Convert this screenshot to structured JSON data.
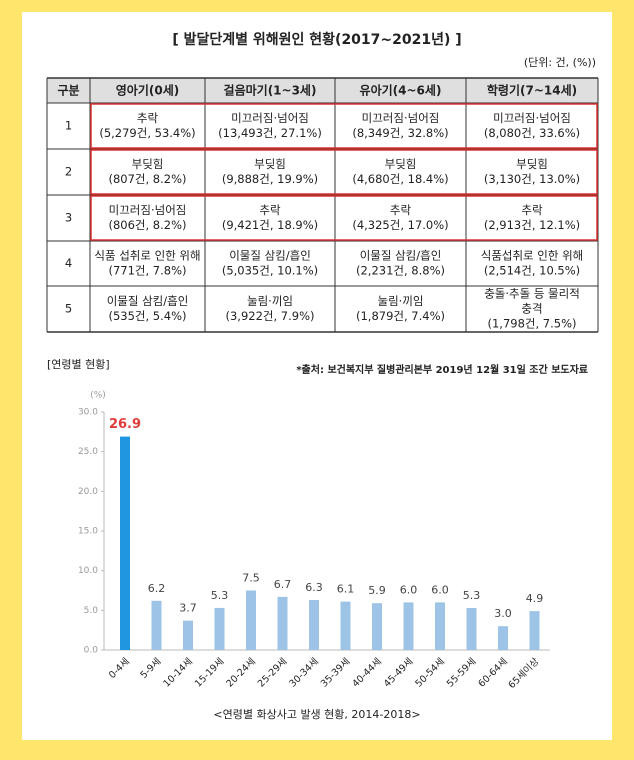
{
  "header": {
    "title": "[ 발달단계별 위해원인 현황(2017~2021년) ]",
    "unit": "(단위: 건, (%))"
  },
  "table": {
    "columns": [
      "구분",
      "영아기(0세)",
      "걸음마기(1~3세)",
      "유아기(4~6세)",
      "학령기(7~14세)"
    ],
    "rows": [
      [
        [
          "1"
        ],
        [
          "추락",
          "(5,279건, 53.4%)"
        ],
        [
          "미끄러짐·넘어짐",
          "(13,493건, 27.1%)"
        ],
        [
          "미끄러짐·넘어짐",
          "(8,349건, 32.8%)"
        ],
        [
          "미끄러짐·넘어짐",
          "(8,080건, 33.6%)"
        ]
      ],
      [
        [
          "2"
        ],
        [
          "부딪힘",
          "(807건, 8.2%)"
        ],
        [
          "부딪힘",
          "(9,888건, 19.9%)"
        ],
        [
          "부딪힘",
          "(4,680건, 18.4%)"
        ],
        [
          "부딪힘",
          "(3,130건, 13.0%)"
        ]
      ],
      [
        [
          "3"
        ],
        [
          "미끄러짐·넘어짐",
          "(806건, 8.2%)"
        ],
        [
          "추락",
          "(9,421건, 18.9%)"
        ],
        [
          "추락",
          "(4,325건, 17.0%)"
        ],
        [
          "추락",
          "(2,913건, 12.1%)"
        ]
      ],
      [
        [
          "4"
        ],
        [
          "식품 섭취로 인한 위해",
          "(771건, 7.8%)"
        ],
        [
          "이물질 삼킴/흡인",
          "(5,035건, 10.1%)"
        ],
        [
          "이물질 삼킴/흡인",
          "(2,231건, 8.8%)"
        ],
        [
          "식품섭취로 인한 위해",
          "(2,514건, 10.5%)"
        ]
      ],
      [
        [
          "5"
        ],
        [
          "이물질 삼킴/흡인",
          "(535건, 5.4%)"
        ],
        [
          "눌림·끼임",
          "(3,922건, 7.9%)"
        ],
        [
          "눌림·끼임",
          "(1,879건, 7.4%)"
        ],
        [
          "충돌·추돌 등 물리적",
          "충격",
          "(1,798건, 7.5%)"
        ]
      ]
    ]
  },
  "chart_data": {
    "type": "bar",
    "title": "[연령별 현황]",
    "source": "*출처: 보건복지부 질병관리본부 2019년 12월 31일 조간 보도자료",
    "y_unit": "(%)",
    "caption": "<연령별 화상사고 발생 현황, 2014-2018>",
    "categories": [
      "0-4세",
      "5-9세",
      "10-14세",
      "15-19세",
      "20-24세",
      "25-29세",
      "30-34세",
      "35-39세",
      "40-44세",
      "45-49세",
      "50-54세",
      "55-59세",
      "60-64세",
      "65세이상"
    ],
    "values": [
      26.9,
      6.2,
      3.7,
      5.3,
      7.5,
      6.7,
      6.3,
      6.1,
      5.9,
      6.0,
      6.0,
      5.3,
      3.0,
      4.9
    ],
    "value_labels": [
      "26.9",
      "6.2",
      "3.7",
      "5.3",
      "7.5",
      "6.7",
      "6.3",
      "6.1",
      "5.9",
      "6.0",
      "6.0",
      "5.3",
      "3.0",
      "4.9"
    ],
    "colors": [
      "#2196e0",
      "#9dc3e6",
      "#9dc3e6",
      "#9dc3e6",
      "#9dc3e6",
      "#9dc3e6",
      "#9dc3e6",
      "#9dc3e6",
      "#9dc3e6",
      "#9dc3e6",
      "#9dc3e6",
      "#9dc3e6",
      "#9dc3e6",
      "#9dc3e6"
    ],
    "label_colors": [
      "#e03c3c",
      "#444",
      "#444",
      "#444",
      "#444",
      "#444",
      "#444",
      "#444",
      "#444",
      "#444",
      "#444",
      "#444",
      "#444",
      "#444"
    ],
    "ylim": [
      0,
      30
    ],
    "yticks": [
      {
        "value": 0,
        "label": "0.0"
      },
      {
        "value": 5,
        "label": "5.0"
      },
      {
        "value": 10,
        "label": "10.0"
      },
      {
        "value": 15,
        "label": "15.0"
      },
      {
        "value": 20,
        "label": "20.0"
      },
      {
        "value": 25,
        "label": "25.0"
      },
      {
        "value": 30,
        "label": "30.0"
      }
    ]
  }
}
